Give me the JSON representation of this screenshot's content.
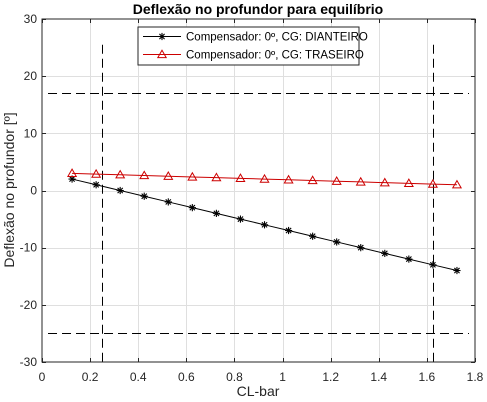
{
  "chart_data": {
    "type": "line",
    "title": "Deflexão no profundor para equilíbrio",
    "xlabel": "CL-bar",
    "ylabel": "Deflexão no profundor [º]",
    "xlim": [
      0,
      1.8
    ],
    "ylim": [
      -30,
      30
    ],
    "xticks": [
      0,
      0.2,
      0.4,
      0.6,
      0.8,
      1,
      1.2,
      1.4,
      1.6,
      1.8
    ],
    "xtick_labels": [
      "0",
      "0.2",
      "0.4",
      "0.6",
      "0.8",
      "1",
      "1.2",
      "1.4",
      "1.6",
      "1.8"
    ],
    "yticks": [
      -30,
      -20,
      -10,
      0,
      10,
      20,
      30
    ],
    "ytick_labels": [
      "-30",
      "-20",
      "-10",
      "0",
      "10",
      "20",
      "30"
    ],
    "grid": true,
    "legend_position": "top-center",
    "x": [
      0.125,
      0.225,
      0.325,
      0.425,
      0.525,
      0.625,
      0.725,
      0.825,
      0.925,
      1.025,
      1.125,
      1.225,
      1.325,
      1.425,
      1.525,
      1.625,
      1.725
    ],
    "series": [
      {
        "name": "Compensador: 0º, CG: DIANTEIRO",
        "color": "#000000",
        "marker": "asterisk",
        "values": [
          2.0,
          1.0,
          0.0,
          -1.0,
          -2.0,
          -3.0,
          -4.0,
          -5.0,
          -6.0,
          -7.0,
          -8.0,
          -9.0,
          -10.0,
          -11.0,
          -12.0,
          -13.0,
          -14.0
        ]
      },
      {
        "name": "Compensador: 0º, CG: TRASEIRO",
        "color": "#cc0000",
        "marker": "triangle",
        "values": [
          3.0,
          2.87,
          2.75,
          2.62,
          2.5,
          2.37,
          2.25,
          2.12,
          2.0,
          1.87,
          1.75,
          1.62,
          1.5,
          1.37,
          1.25,
          1.12,
          1.0
        ]
      }
    ],
    "reference_lines": {
      "color": "#000000",
      "horizontal_y": [
        17,
        -25
      ],
      "vertical_x": [
        0.25,
        1.625
      ]
    }
  }
}
